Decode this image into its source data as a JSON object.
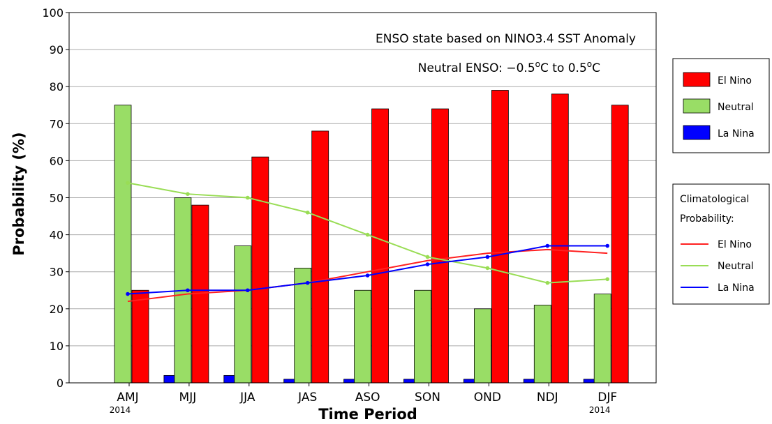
{
  "chart_data": {
    "type": "bar",
    "title": "",
    "xlabel": "Time Period",
    "ylabel": "Probability (%)",
    "ylim": [
      0,
      100
    ],
    "yticks": [
      0,
      10,
      20,
      30,
      40,
      50,
      60,
      70,
      80,
      90,
      100
    ],
    "grid": true,
    "categories": [
      "AMJ",
      "MJJ",
      "JJA",
      "JAS",
      "ASO",
      "SON",
      "OND",
      "NDJ",
      "DJF"
    ],
    "year_labels": [
      {
        "category": "AMJ",
        "text": "2014"
      },
      {
        "category": "DJF",
        "text": "2014"
      }
    ],
    "annotations": [
      "ENSO state based on NINO3.4 SST Anomaly",
      {
        "prefix": "Neutral ENSO: −0.5",
        "sup1": "o",
        "middle": "C to 0.5",
        "sup2": "o",
        "suffix": "C"
      }
    ],
    "series": [
      {
        "name": "La Nina",
        "kind": "bar",
        "color": "#0000ff",
        "values": [
          0,
          2,
          2,
          1,
          1,
          1,
          1,
          1,
          1
        ]
      },
      {
        "name": "Neutral",
        "kind": "bar",
        "color": "#99dd66",
        "values": [
          75,
          50,
          37,
          31,
          25,
          25,
          20,
          21,
          24
        ]
      },
      {
        "name": "El Nino",
        "kind": "bar",
        "color": "#ff0000",
        "values": [
          25,
          48,
          61,
          68,
          74,
          74,
          79,
          78,
          75
        ]
      }
    ],
    "climatology": [
      {
        "name": "El Nino",
        "kind": "line",
        "color": "#ff2020",
        "values": [
          22,
          24,
          25,
          27,
          30,
          33,
          35,
          36,
          35
        ]
      },
      {
        "name": "Neutral",
        "kind": "line",
        "color": "#99dd55",
        "values": [
          54,
          51,
          50,
          46,
          40,
          34,
          31,
          27,
          28
        ]
      },
      {
        "name": "La Nina",
        "kind": "line",
        "color": "#0000ff",
        "values": [
          24,
          25,
          25,
          27,
          29,
          32,
          34,
          37,
          37
        ]
      }
    ],
    "legend_bars": {
      "placement": "right",
      "items": [
        {
          "label": "El Nino",
          "color": "#ff0000"
        },
        {
          "label": "Neutral",
          "color": "#99dd66"
        },
        {
          "label": "La Nina",
          "color": "#0000ff"
        }
      ]
    },
    "legend_lines": {
      "placement": "right",
      "title_lines": [
        "Climatological",
        "Probability:"
      ],
      "items": [
        {
          "label": "El Nino",
          "color": "#ff2020"
        },
        {
          "label": "Neutral",
          "color": "#99dd55"
        },
        {
          "label": "La Nina",
          "color": "#0000ff"
        }
      ]
    }
  }
}
